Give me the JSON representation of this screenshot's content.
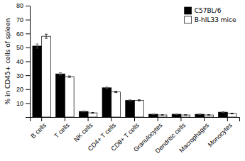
{
  "chart_data": {
    "type": "bar",
    "categories": [
      "B cells",
      "T cells",
      "NK cells",
      "CD4+ T cells",
      "CD8+ T cells",
      "Granulocytes",
      "Dendritic cells",
      "Macrophages",
      "Monocytes"
    ],
    "series": [
      {
        "name": "C57BL/6",
        "color": "#000000",
        "values": [
          51,
          31,
          4,
          21,
          12,
          2,
          2,
          2,
          3.5
        ],
        "errors": [
          1.5,
          0.8,
          0.3,
          0.5,
          0.4,
          0.2,
          0.2,
          0.2,
          0.3
        ]
      },
      {
        "name": "B-hIL33 mice",
        "color": "#ffffff",
        "values": [
          58,
          29,
          3,
          18,
          12,
          1.5,
          1.5,
          1.5,
          2.5
        ],
        "errors": [
          1.5,
          0.5,
          0.3,
          0.5,
          0.4,
          0.2,
          0.2,
          0.2,
          0.3
        ]
      }
    ],
    "ylabel": "% in CD45+ cells of spleen",
    "ylim": [
      0,
      80
    ],
    "yticks": [
      10,
      20,
      30,
      40,
      50,
      60,
      70,
      80
    ],
    "legend": "upper right",
    "grid": false
  }
}
